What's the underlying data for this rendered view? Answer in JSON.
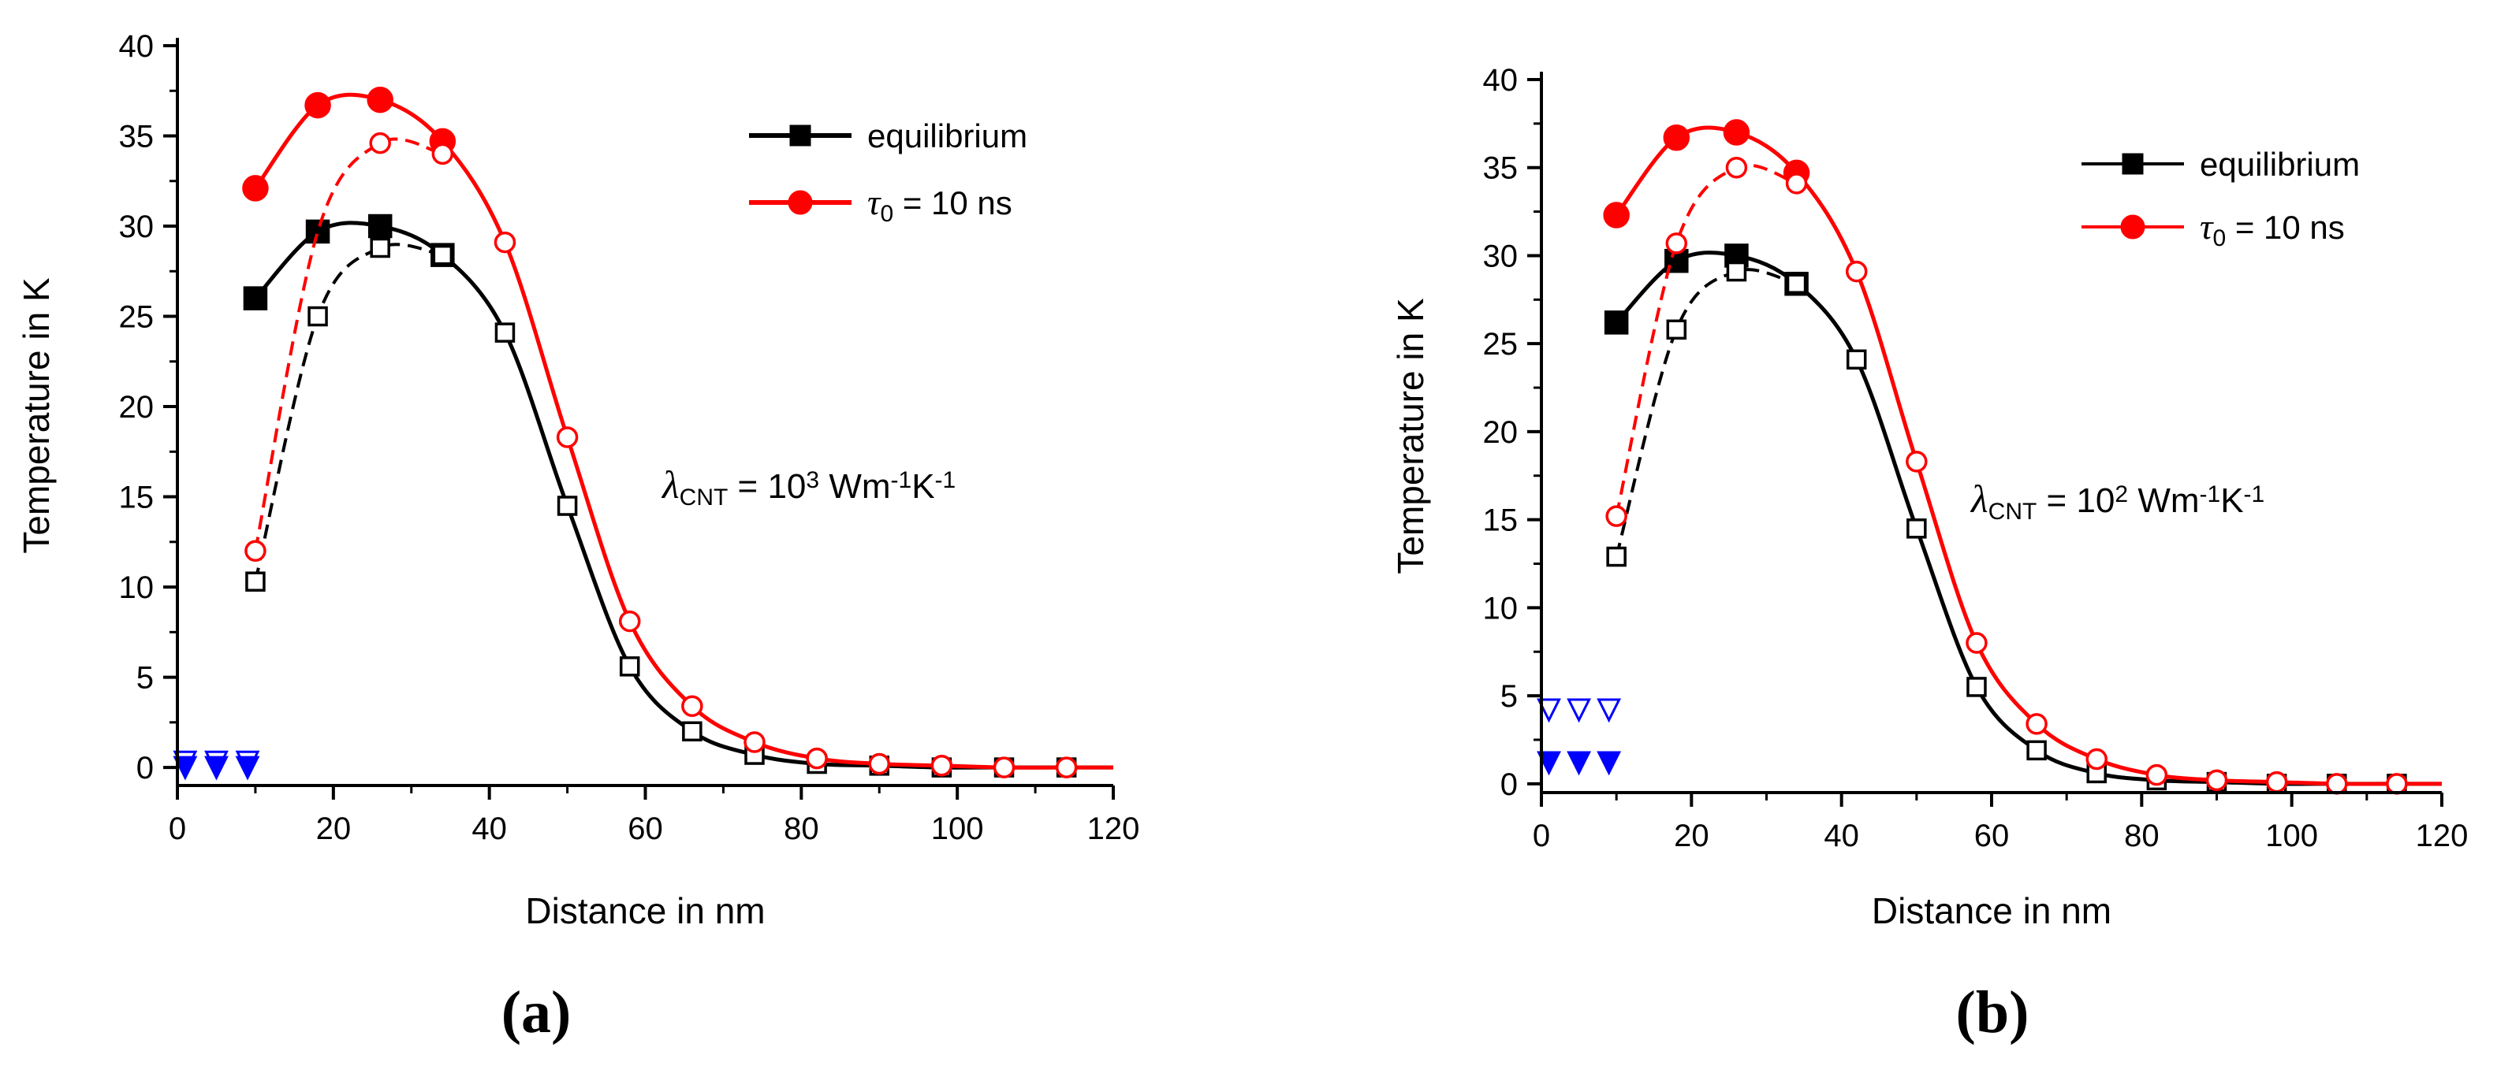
{
  "colors": {
    "equilibrium": "#000000",
    "tau": "#ff0000",
    "cnt_marker": "#0000ff"
  },
  "chart_data": [
    {
      "id": "a",
      "type": "line",
      "panel_label": "(a)",
      "xlabel": "Distance in nm",
      "ylabel": "Temperature in K",
      "xlim": [
        0,
        120
      ],
      "ylim": [
        -1,
        40
      ],
      "xticks": [
        0,
        20,
        40,
        60,
        80,
        100,
        120
      ],
      "yticks": [
        0,
        5,
        10,
        15,
        20,
        25,
        30,
        35,
        40
      ],
      "annotation": {
        "sym": "λ",
        "sub": "CNT",
        "mid": " = 10",
        "sup1": "3",
        "mid2": " Wm",
        "sup2": "-1",
        "mid3": "K",
        "sup3": "-1"
      },
      "legend": [
        {
          "label": "equilibrium",
          "marker": "square",
          "color": "#000000"
        },
        {
          "label_sym": "τ",
          "label_sub": "0",
          "label_rest": " = 10 ns",
          "marker": "circle",
          "color": "#ff0000"
        }
      ],
      "series": [
        {
          "name": "equilibrium (filled)",
          "color": "#000000",
          "marker": "square",
          "filled": true,
          "dash": false,
          "x": [
            10,
            18,
            26,
            34,
            42,
            50,
            58,
            66,
            74,
            82,
            90,
            98,
            106,
            114
          ],
          "y": [
            26.0,
            29.7,
            30.0,
            28.4,
            24.1,
            14.5,
            5.6,
            2.0,
            0.7,
            0.2,
            0.1,
            0.0,
            0.0,
            0.0
          ],
          "marker_idx": [
            0,
            1,
            2,
            3
          ]
        },
        {
          "name": "equilibrium (open)",
          "color": "#000000",
          "marker": "square",
          "filled": false,
          "dash": true,
          "x": [
            10,
            18,
            26,
            34
          ],
          "y": [
            10.3,
            25.0,
            28.8,
            28.4
          ],
          "marker_idx": [
            0,
            1,
            2
          ]
        },
        {
          "name": "equilibrium tail",
          "color": "#000000",
          "marker": "square",
          "filled": false,
          "dash": false,
          "line": false,
          "x": [
            34,
            42,
            50,
            58,
            66,
            74,
            82,
            90,
            98,
            106,
            114
          ],
          "y": [
            28.4,
            24.1,
            14.5,
            5.6,
            2.0,
            0.7,
            0.2,
            0.1,
            0.0,
            0.0,
            0.0
          ]
        },
        {
          "name": "tau0 = 10 ns (filled)",
          "color": "#ff0000",
          "marker": "circle",
          "filled": true,
          "dash": false,
          "x": [
            10,
            18,
            26,
            34,
            42,
            50,
            58,
            66,
            74,
            82,
            90,
            98,
            106,
            114
          ],
          "y": [
            32.1,
            36.7,
            37.0,
            34.7,
            29.1,
            18.3,
            8.1,
            3.4,
            1.4,
            0.5,
            0.2,
            0.1,
            0.0,
            0.0
          ],
          "marker_idx": [
            0,
            1,
            2,
            3
          ]
        },
        {
          "name": "tau0 = 10 ns (open)",
          "color": "#ff0000",
          "marker": "circle",
          "filled": false,
          "dash": true,
          "x": [
            10,
            18,
            26,
            34
          ],
          "y": [
            12.0,
            29.7,
            34.6,
            34.0
          ],
          "marker_idx": [
            0,
            2,
            3
          ]
        },
        {
          "name": "tau tail",
          "color": "#ff0000",
          "marker": "circle",
          "filled": false,
          "dash": false,
          "line": false,
          "x": [
            42,
            50,
            58,
            66,
            74,
            82,
            90,
            98,
            106,
            114
          ],
          "y": [
            29.1,
            18.3,
            8.1,
            3.4,
            1.4,
            0.5,
            0.2,
            0.1,
            0.0,
            0.0
          ]
        },
        {
          "name": "CNT (open)",
          "color": "#0000ff",
          "marker": "triangle-down",
          "filled": false,
          "line": false,
          "x": [
            1,
            5,
            9
          ],
          "y": [
            0.3,
            0.3,
            0.3
          ]
        },
        {
          "name": "CNT (filled)",
          "color": "#0000ff",
          "marker": "triangle-down",
          "filled": true,
          "line": false,
          "x": [
            1,
            5,
            9
          ],
          "y": [
            0.0,
            0.0,
            0.0
          ]
        }
      ]
    },
    {
      "id": "b",
      "type": "line",
      "panel_label": "(b)",
      "xlabel": "Distance in nm",
      "ylabel": "Temperature in K",
      "xlim": [
        0,
        120
      ],
      "ylim": [
        -0.5,
        40
      ],
      "xticks": [
        0,
        20,
        40,
        60,
        80,
        100,
        120
      ],
      "yticks": [
        0,
        5,
        10,
        15,
        20,
        25,
        30,
        35,
        40
      ],
      "annotation": {
        "sym": "λ",
        "sub": "CNT",
        "mid": " = 10",
        "sup1": "2",
        "mid2": " Wm",
        "sup2": "-1",
        "mid3": "K",
        "sup3": "-1"
      },
      "legend": [
        {
          "label": "equilibrium",
          "marker": "square",
          "color": "#000000"
        },
        {
          "label_sym": "τ",
          "label_sub": "0",
          "label_rest": " = 10 ns",
          "marker": "circle",
          "color": "#ff0000"
        }
      ],
      "series": [
        {
          "name": "equilibrium (filled)",
          "color": "#000000",
          "marker": "square",
          "filled": true,
          "dash": false,
          "x": [
            10,
            18,
            26,
            34,
            42,
            50,
            58,
            66,
            74,
            82,
            90,
            98,
            106,
            114
          ],
          "y": [
            26.2,
            29.7,
            30.0,
            28.4,
            24.1,
            14.5,
            5.5,
            1.9,
            0.6,
            0.2,
            0.1,
            0.0,
            0.0,
            0.0
          ],
          "marker_idx": [
            0,
            1,
            2,
            3
          ]
        },
        {
          "name": "equilibrium (open)",
          "color": "#000000",
          "marker": "square",
          "filled": false,
          "dash": true,
          "x": [
            10,
            18,
            26,
            34
          ],
          "y": [
            12.9,
            25.8,
            29.1,
            28.4
          ],
          "marker_idx": [
            0,
            1,
            2
          ]
        },
        {
          "name": "equilibrium tail",
          "color": "#000000",
          "marker": "square",
          "filled": false,
          "dash": false,
          "line": false,
          "x": [
            34,
            42,
            50,
            58,
            66,
            74,
            82,
            90,
            98,
            106,
            114
          ],
          "y": [
            28.4,
            24.1,
            14.5,
            5.5,
            1.9,
            0.6,
            0.2,
            0.1,
            0.0,
            0.0,
            0.0
          ]
        },
        {
          "name": "tau0 = 10 ns (filled)",
          "color": "#ff0000",
          "marker": "circle",
          "filled": true,
          "dash": false,
          "x": [
            10,
            18,
            26,
            34,
            42,
            50,
            58,
            66,
            74,
            82,
            90,
            98,
            106,
            114
          ],
          "y": [
            32.3,
            36.7,
            37.0,
            34.7,
            29.1,
            18.3,
            8.0,
            3.4,
            1.4,
            0.5,
            0.2,
            0.1,
            0.0,
            0.0
          ],
          "marker_idx": [
            0,
            1,
            2,
            3
          ]
        },
        {
          "name": "tau0 = 10 ns (open)",
          "color": "#ff0000",
          "marker": "circle",
          "filled": false,
          "dash": true,
          "x": [
            10,
            18,
            26,
            34
          ],
          "y": [
            15.2,
            30.7,
            35.0,
            34.1
          ],
          "marker_idx": [
            0,
            1,
            2,
            3
          ]
        },
        {
          "name": "tau tail",
          "color": "#ff0000",
          "marker": "circle",
          "filled": false,
          "dash": false,
          "line": false,
          "x": [
            42,
            50,
            58,
            66,
            74,
            82,
            90,
            98,
            106,
            114
          ],
          "y": [
            29.1,
            18.3,
            8.0,
            3.4,
            1.4,
            0.5,
            0.2,
            0.1,
            0.0,
            0.0
          ]
        },
        {
          "name": "CNT (open)",
          "color": "#0000ff",
          "marker": "triangle-down",
          "filled": false,
          "line": false,
          "x": [
            1,
            5,
            9
          ],
          "y": [
            4.2,
            4.2,
            4.2
          ]
        },
        {
          "name": "CNT (filled)",
          "color": "#0000ff",
          "marker": "triangle-down",
          "filled": true,
          "line": false,
          "x": [
            1,
            5,
            9
          ],
          "y": [
            1.2,
            1.2,
            1.2
          ]
        }
      ]
    }
  ]
}
